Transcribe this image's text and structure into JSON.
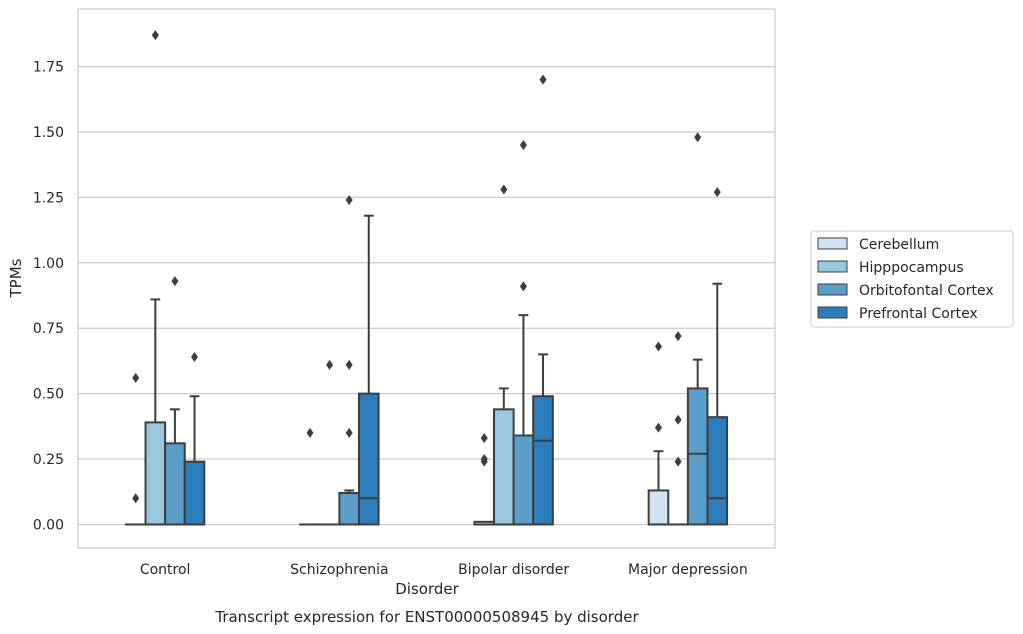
{
  "chart_data": {
    "type": "box",
    "xlabel": "Disorder",
    "ylabel": "TPMs",
    "caption": "Transcript expression for ENST00000508945 by disorder",
    "ylim": [
      -0.09,
      1.97
    ],
    "yticks": [
      0.0,
      0.25,
      0.5,
      0.75,
      1.0,
      1.25,
      1.5,
      1.75
    ],
    "ytick_labels": [
      "0.00",
      "0.25",
      "0.50",
      "0.75",
      "1.00",
      "1.25",
      "1.50",
      "1.75"
    ],
    "grid": "horizontal",
    "legend_position": "right",
    "categories": [
      "Control",
      "Schizophrenia",
      "Bipolar disorder",
      "Major depression"
    ],
    "series": [
      {
        "name": "Cerebellum",
        "color": "#d1e2f2",
        "boxes": [
          {
            "q1": 0,
            "median": 0,
            "q3": 0,
            "whisker_low": 0,
            "whisker_high": 0,
            "outliers": [
              0.1,
              0.56
            ]
          },
          {
            "q1": 0,
            "median": 0,
            "q3": 0,
            "whisker_low": 0,
            "whisker_high": 0,
            "outliers": [
              0.35
            ]
          },
          {
            "q1": 0,
            "median": 0,
            "q3": 0.01,
            "whisker_low": 0,
            "whisker_high": 0.01,
            "outliers": [
              0.24,
              0.25,
              0.33
            ]
          },
          {
            "q1": 0,
            "median": 0,
            "q3": 0.13,
            "whisker_low": 0,
            "whisker_high": 0.28,
            "outliers": [
              0.37,
              0.68
            ]
          }
        ]
      },
      {
        "name": "Hipppocampus",
        "color": "#9ac8e0",
        "boxes": [
          {
            "q1": 0,
            "median": 0,
            "q3": 0.39,
            "whisker_low": 0,
            "whisker_high": 0.86,
            "outliers": [
              1.87
            ]
          },
          {
            "q1": 0,
            "median": 0,
            "q3": 0,
            "whisker_low": 0,
            "whisker_high": 0,
            "outliers": [
              0.61
            ]
          },
          {
            "q1": 0,
            "median": 0,
            "q3": 0.44,
            "whisker_low": 0,
            "whisker_high": 0.52,
            "outliers": [
              1.28
            ]
          },
          {
            "q1": 0,
            "median": 0,
            "q3": 0,
            "whisker_low": 0,
            "whisker_high": 0,
            "outliers": [
              0.24,
              0.4,
              0.72
            ]
          }
        ]
      },
      {
        "name": "Orbitofontal Cortex",
        "color": "#5b9ec9",
        "boxes": [
          {
            "q1": 0,
            "median": 0,
            "q3": 0.31,
            "whisker_low": 0,
            "whisker_high": 0.44,
            "outliers": [
              0.93
            ]
          },
          {
            "q1": 0,
            "median": 0.12,
            "q3": 0.12,
            "whisker_low": 0,
            "whisker_high": 0.13,
            "outliers": [
              0.35,
              0.61,
              1.24
            ]
          },
          {
            "q1": 0,
            "median": 0,
            "q3": 0.34,
            "whisker_low": 0,
            "whisker_high": 0.8,
            "outliers": [
              0.91,
              1.45
            ]
          },
          {
            "q1": 0,
            "median": 0.27,
            "q3": 0.52,
            "whisker_low": 0,
            "whisker_high": 0.63,
            "outliers": [
              1.48
            ]
          }
        ]
      },
      {
        "name": "Prefrontal Cortex",
        "color": "#2d7dbb",
        "boxes": [
          {
            "q1": 0,
            "median": 0,
            "q3": 0.24,
            "whisker_low": 0,
            "whisker_high": 0.49,
            "outliers": [
              0.64
            ]
          },
          {
            "q1": 0,
            "median": 0.1,
            "q3": 0.5,
            "whisker_low": 0,
            "whisker_high": 1.18,
            "outliers": []
          },
          {
            "q1": 0,
            "median": 0.32,
            "q3": 0.49,
            "whisker_low": 0,
            "whisker_high": 0.65,
            "outliers": [
              1.7
            ]
          },
          {
            "q1": 0,
            "median": 0.1,
            "q3": 0.41,
            "whisker_low": 0,
            "whisker_high": 0.92,
            "outliers": [
              1.27
            ]
          }
        ]
      }
    ]
  }
}
